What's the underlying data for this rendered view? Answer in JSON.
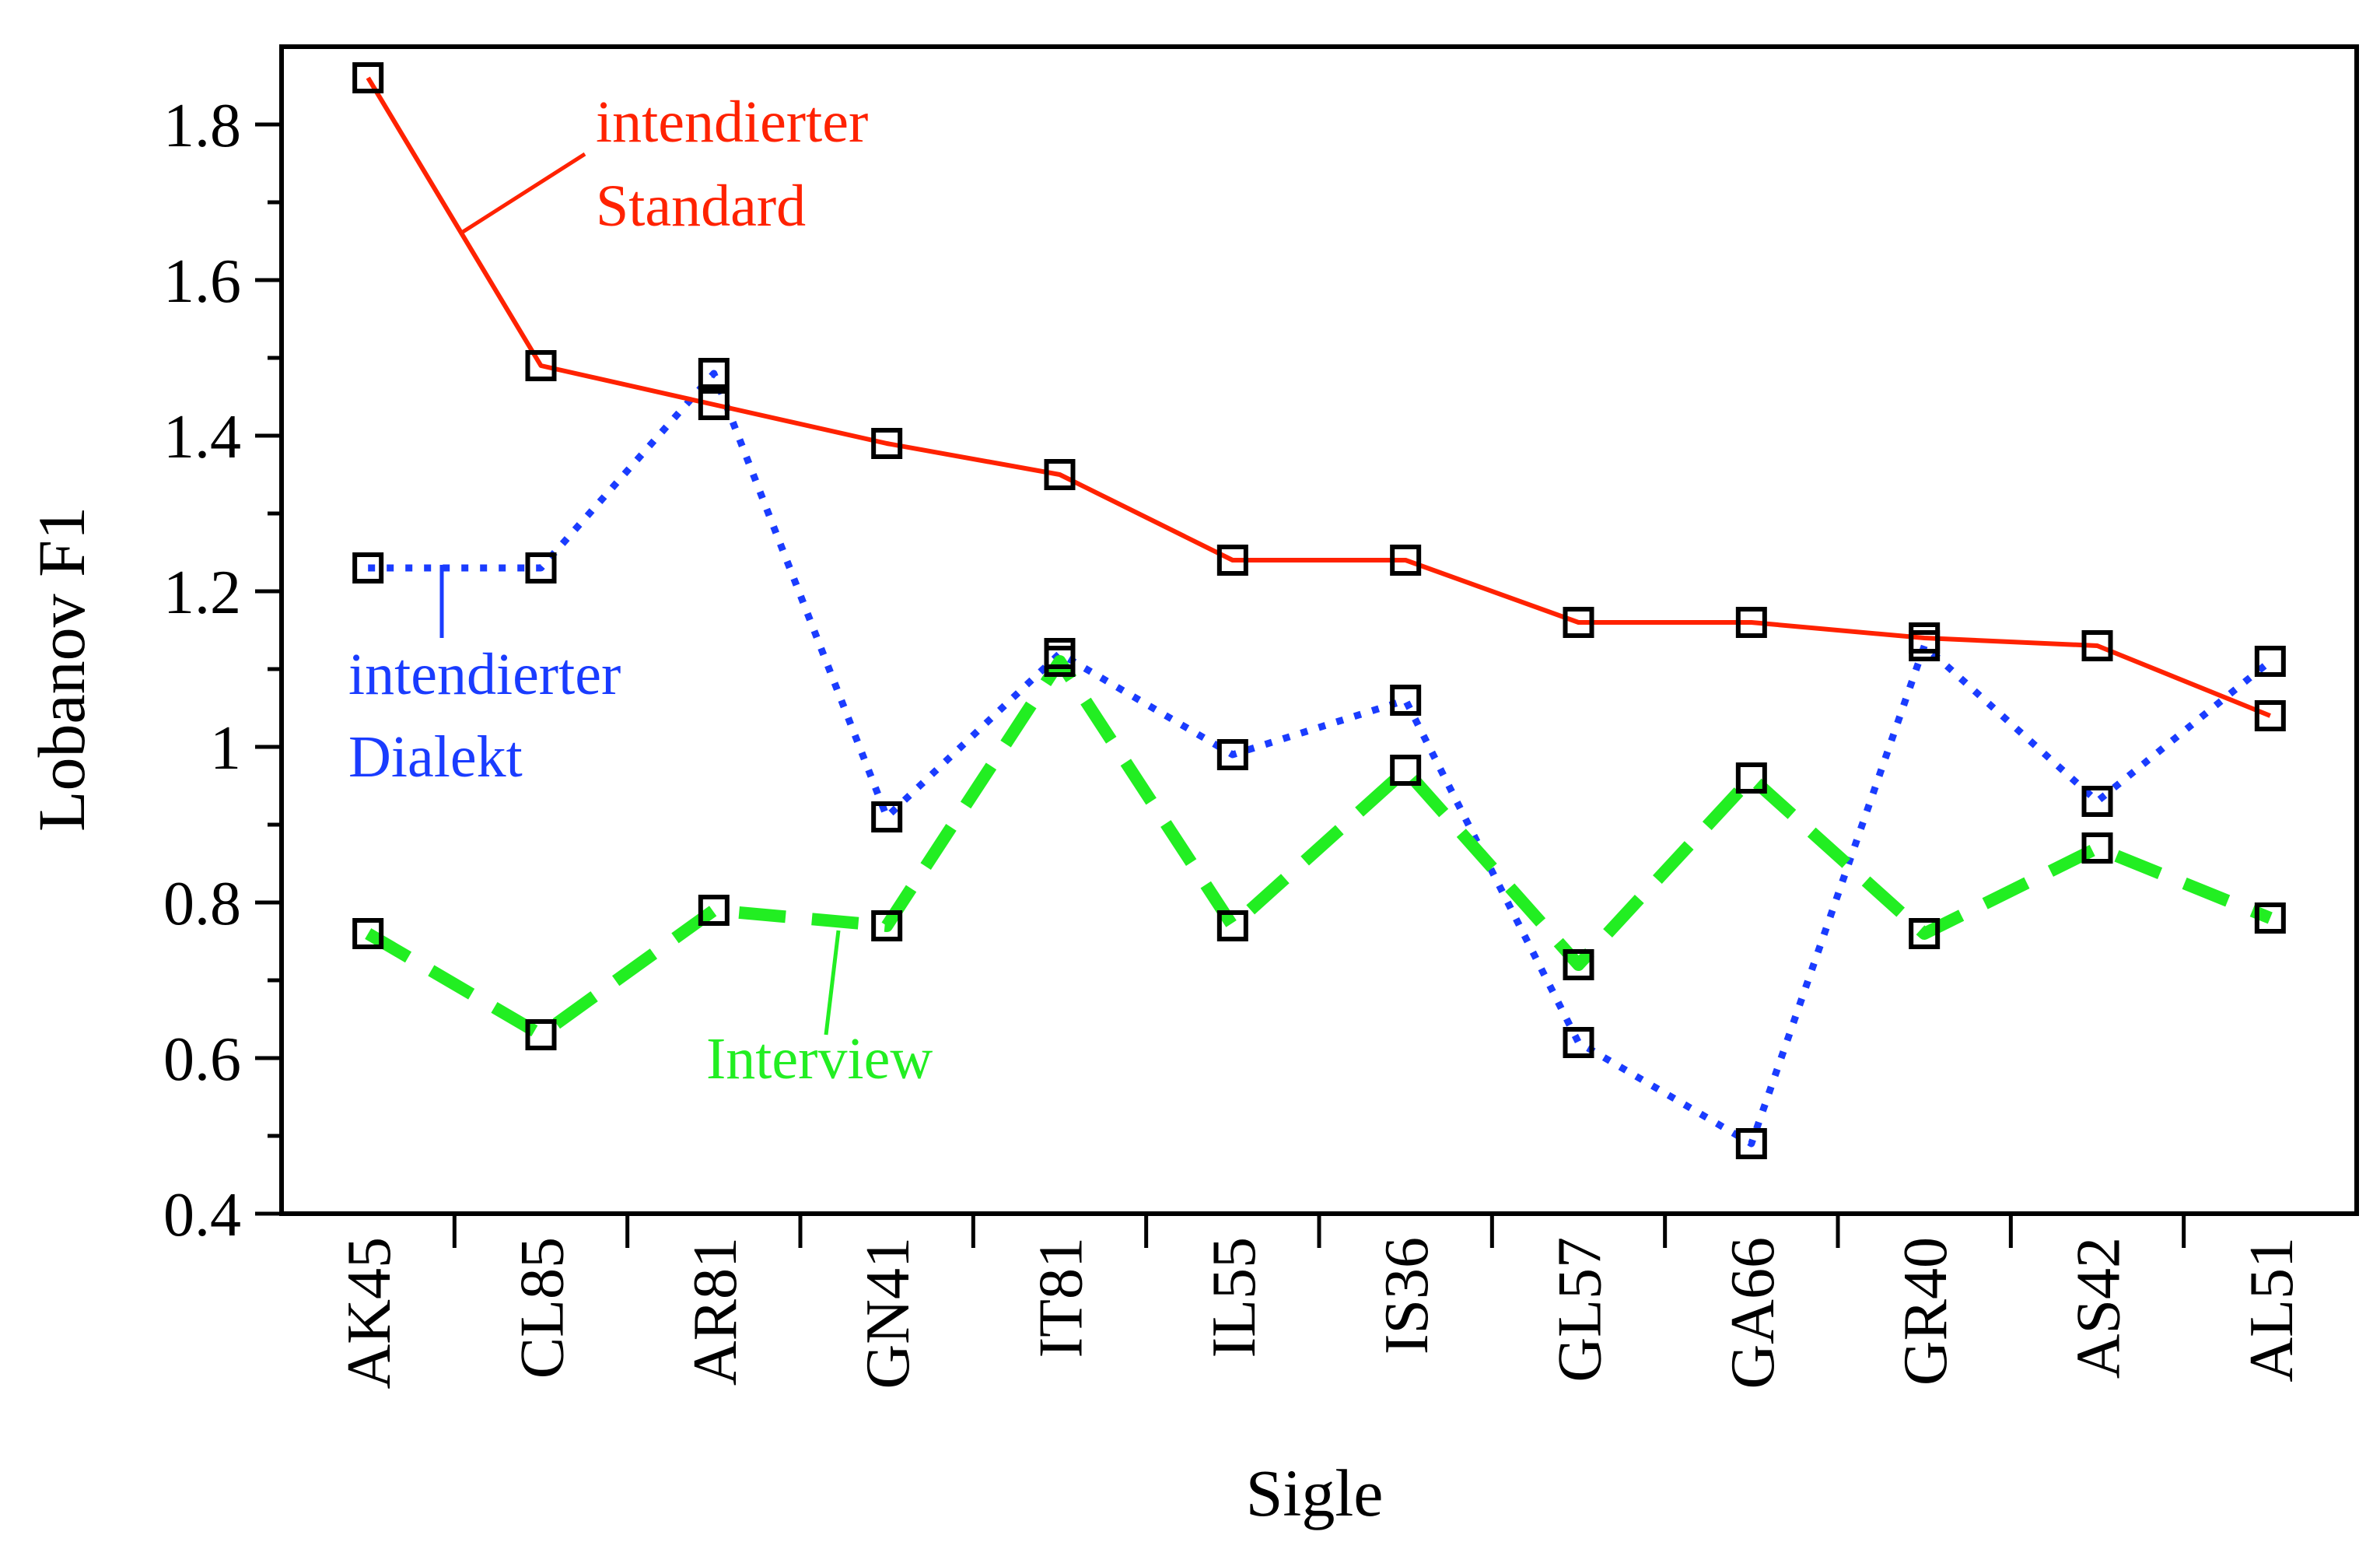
{
  "chart_data": {
    "type": "line",
    "xlabel": "Sigle",
    "ylabel": "Lobanov F1",
    "categories": [
      "AK45",
      "CL85",
      "AR81",
      "GN41",
      "IT81",
      "IL55",
      "IS36",
      "GL57",
      "GA66",
      "GR40",
      "AS42",
      "AL51"
    ],
    "ylim": [
      0.4,
      1.9
    ],
    "yticks": [
      "0.4",
      "0.6",
      "0.8",
      "1",
      "1.2",
      "1.4",
      "1.6",
      "1.8"
    ],
    "grid": false,
    "legend": "inline labels",
    "marker": "open-square",
    "series": [
      {
        "name": "intendierter Standard",
        "label_lines": [
          "intendierter",
          "Standard"
        ],
        "color": "#ff2200",
        "style": "solid",
        "values": [
          1.86,
          1.49,
          1.44,
          1.39,
          1.35,
          1.24,
          1.24,
          1.16,
          1.16,
          1.14,
          1.13,
          1.04
        ]
      },
      {
        "name": "intendierter Dialekt",
        "label_lines": [
          "intendierter",
          "Dialekt"
        ],
        "color": "#1a3cff",
        "style": "dotted",
        "values": [
          1.23,
          1.23,
          1.48,
          0.91,
          1.12,
          0.99,
          1.06,
          0.62,
          0.49,
          1.13,
          0.93,
          1.11
        ]
      },
      {
        "name": "Interview",
        "label_lines": [
          "Interview"
        ],
        "color": "#22ee22",
        "style": "dashed",
        "values": [
          0.76,
          0.63,
          0.79,
          0.77,
          1.11,
          0.77,
          0.97,
          0.72,
          0.96,
          0.76,
          0.87,
          0.78
        ]
      }
    ]
  }
}
